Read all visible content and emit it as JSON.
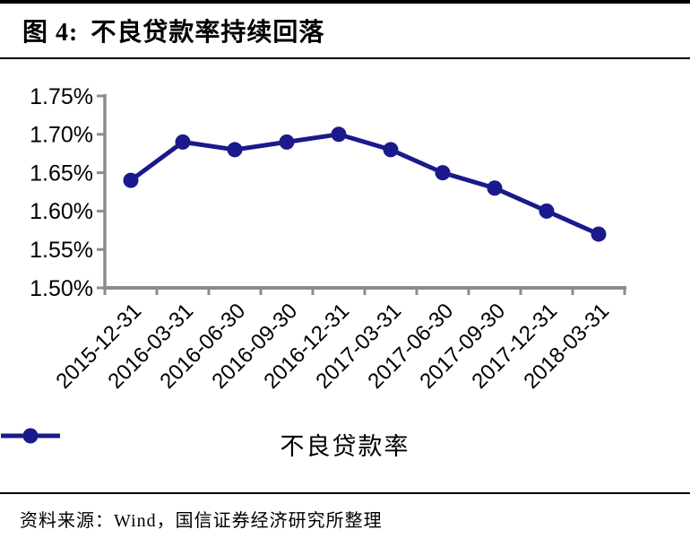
{
  "figure": {
    "label": "图 4:",
    "title": "不良贷款率持续回落",
    "source": "资料来源：Wind，国信证券经济研究所整理"
  },
  "chart_data": {
    "type": "line",
    "title": "不良贷款率持续回落",
    "categories": [
      "2015-12-31",
      "2016-03-31",
      "2016-06-30",
      "2016-09-30",
      "2016-12-31",
      "2017-03-31",
      "2017-06-30",
      "2017-09-30",
      "2017-12-31",
      "2018-03-31"
    ],
    "series": [
      {
        "name": "不良贷款率",
        "values": [
          1.64,
          1.69,
          1.68,
          1.69,
          1.7,
          1.68,
          1.65,
          1.63,
          1.6,
          1.57
        ]
      }
    ],
    "ylim": [
      1.5,
      1.75
    ],
    "y_ticks": {
      "values": [
        1.75,
        1.7,
        1.65,
        1.6,
        1.55,
        1.5
      ],
      "labels": [
        "1.75%",
        "1.70%",
        "1.65%",
        "1.60%",
        "1.55%",
        "1.50%"
      ]
    },
    "x_tick_label_rotation": -45,
    "grid": false,
    "legend_position": "bottom",
    "colors": {
      "series": "#1a1a8c",
      "axis": "#8c8c8c",
      "text": "#000000"
    }
  }
}
